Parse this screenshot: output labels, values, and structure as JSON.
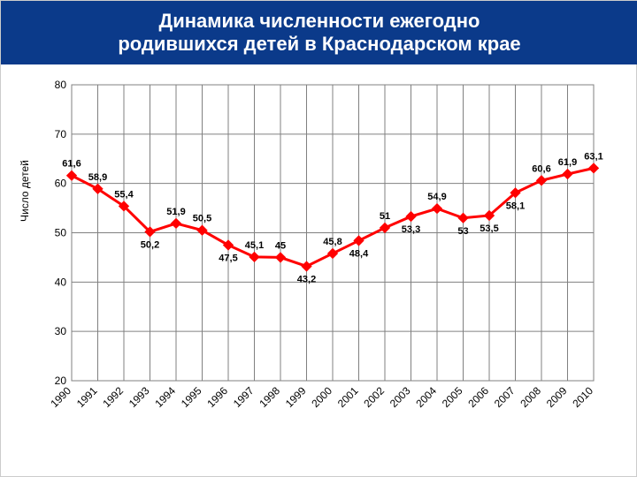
{
  "title": "Динамика численности ежегодно\nродившихся детей в Краснодарском крае",
  "title_band": {
    "bg": "#0b3a8a",
    "fg": "#ffffff",
    "fontsize": 22
  },
  "ylabel": "Число детей",
  "chart": {
    "type": "line",
    "categories": [
      "1990",
      "1991",
      "1992",
      "1993",
      "1994",
      "1995",
      "1996",
      "1997",
      "1998",
      "1999",
      "2000",
      "2001",
      "2002",
      "2003",
      "2004",
      "2005",
      "2006",
      "2007",
      "2008",
      "2009",
      "2010"
    ],
    "values": [
      61.6,
      58.9,
      55.4,
      50.2,
      51.9,
      50.5,
      47.5,
      45.1,
      45.0,
      43.2,
      45.8,
      48.4,
      51.0,
      53.3,
      54.9,
      53.0,
      53.5,
      58.1,
      60.6,
      61.9,
      63.1
    ],
    "labels": [
      "61,6",
      "58,9",
      "55,4",
      "50,2",
      "51,9",
      "50,5",
      "47,5",
      "45,1",
      "45",
      "43,2",
      "45,8",
      "48,4",
      "51",
      "53,3",
      "54,9",
      "53",
      "53,5",
      "58,1",
      "60,6",
      "61,9",
      "63,1"
    ],
    "label_above": [
      true,
      true,
      true,
      false,
      true,
      true,
      false,
      true,
      true,
      false,
      true,
      false,
      true,
      false,
      true,
      false,
      false,
      false,
      true,
      true,
      true
    ],
    "ylim": [
      20,
      80
    ],
    "ytick_step": 10,
    "grid_color": "#808080",
    "series_color": "#ff0000",
    "marker": "diamond",
    "marker_size": 8,
    "line_width": 3,
    "background_color": "#ffffff",
    "label_fontsize": 11,
    "tick_fontsize": 12
  }
}
